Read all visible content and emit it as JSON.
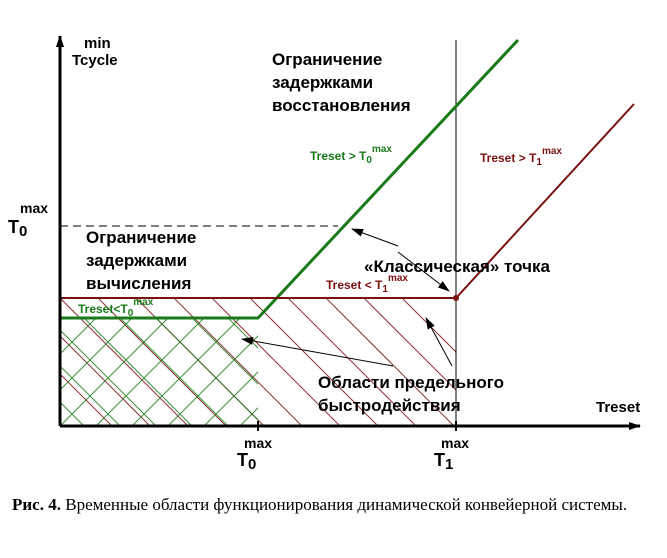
{
  "diagram": {
    "y_axis": {
      "label_top": "min",
      "label": "Tcycle"
    },
    "x_axis": {
      "label": "Treset"
    },
    "ticks": {
      "x": [
        {
          "sup": "max",
          "symbol": "T",
          "sub": "0"
        },
        {
          "sup": "max",
          "symbol": "T",
          "sub": "1"
        }
      ],
      "y": {
        "sup": "max",
        "symbol": "T",
        "sub": "0"
      }
    },
    "regions": {
      "recovery_limit": [
        "Ограничение",
        "задержками",
        "восстановления"
      ],
      "compute_limit": [
        "Ограничение",
        "задержками",
        "вычисления"
      ],
      "limit_speed": [
        "Области предельного",
        "быстродействия"
      ]
    },
    "classic_point": "«Классическая» точка",
    "line_labels": {
      "green_slope": {
        "text": "Treset > T",
        "sub": "0",
        "sup": "max"
      },
      "green_flat": {
        "text": "Treset<T",
        "sub": "0",
        "sup": "max"
      },
      "red_slope": {
        "text": "Treset > T",
        "sub": "1",
        "sup": "max"
      },
      "red_flat": {
        "text": "Treset < T",
        "sub": "1",
        "sup": "max"
      }
    },
    "colors": {
      "green": "#1a7a1a",
      "red": "#7a1010",
      "black": "#000000"
    }
  },
  "caption": {
    "prefix": "Рис. 4.",
    "text": " Временные области функционирования динамической конвейерной системы."
  }
}
